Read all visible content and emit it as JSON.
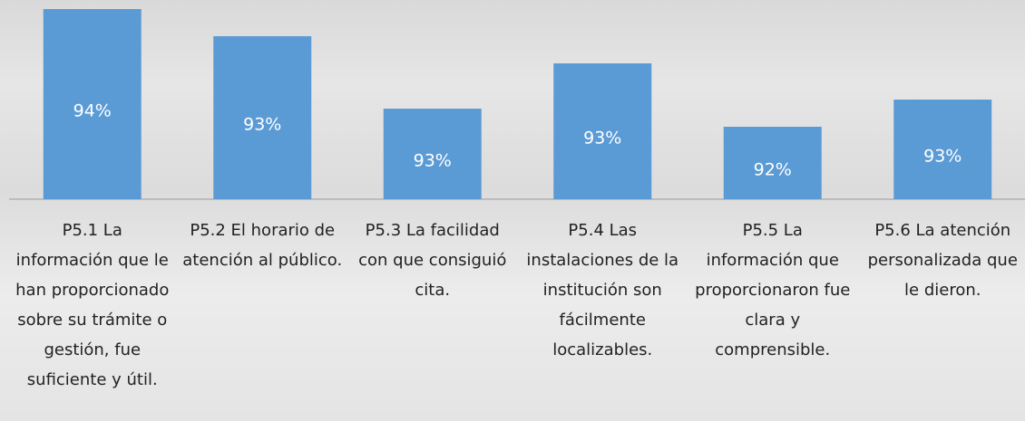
{
  "chart_data": {
    "type": "bar",
    "categories": [
      "P5.1 La información que le han proporcionado sobre su trámite o gestión, fue suficiente y útil.",
      "P5.2 El horario de atención al público.",
      "P5.3 La facilidad con que consiguió cita.",
      "P5.4 Las instalaciones de la institución son fácilmente localizables.",
      "P5.5 La información que proporcionaron fue clara y comprensible.",
      "P5.6 La atención personalizada que le dieron."
    ],
    "values": [
      93.7,
      93.4,
      92.6,
      93.1,
      92.4,
      92.7
    ],
    "value_labels": [
      "94%",
      "93%",
      "93%",
      "93%",
      "92%",
      "93%"
    ],
    "color": "#5b9bd5",
    "ylim": [
      91.6,
      93.8
    ]
  }
}
